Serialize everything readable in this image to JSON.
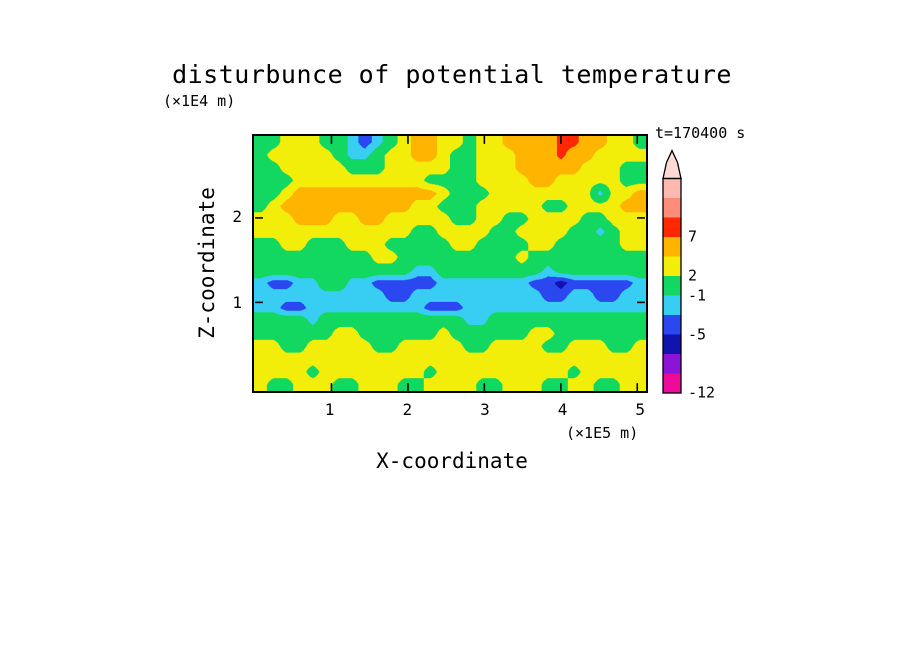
{
  "chart_data": {
    "type": "heatmap",
    "title": "disturbunce of potential temperature",
    "xlabel": "X-coordinate",
    "ylabel": "Z-coordinate",
    "x_unit": "(×1E5 m)",
    "y_unit": "(×1E4 m)",
    "time_label": "t=170400 s",
    "x_range": [
      0,
      5.1
    ],
    "y_range": [
      -0.05,
      2.97
    ],
    "x_ticks": [
      1,
      2,
      3,
      4,
      5
    ],
    "y_ticks": [
      1,
      2
    ],
    "legend_position": "right",
    "grid": false,
    "levels": [
      -12,
      -9,
      -7,
      -5,
      -3,
      -1,
      2,
      4,
      7,
      9,
      11,
      13
    ],
    "colors": [
      "#f0059b",
      "#ee0a9a",
      "#8a14d8",
      "#1212ae",
      "#2a47f0",
      "#38cdf2",
      "#12d862",
      "#f2ee0a",
      "#ffb400",
      "#ff2800",
      "#ff8c78",
      "#ffb9b0",
      "#ffd9d4"
    ],
    "colorbar_labels": [
      7,
      2,
      -1,
      -5,
      -12
    ],
    "values_note": "disturbance values on a 20-row (top z=2.97 to bottom z=-0.05) by 30-col (x=0..5.1) grid, units consistent with colorbar levels",
    "values": [
      [
        1,
        1,
        3,
        3,
        3,
        1,
        1,
        -2,
        -4,
        -2,
        1,
        3,
        5,
        5,
        3,
        3,
        1,
        3,
        3,
        5,
        5,
        5,
        5,
        8,
        8,
        5,
        5,
        3,
        3,
        1
      ],
      [
        1,
        3,
        3,
        3,
        3,
        3,
        1,
        -2,
        -2,
        1,
        3,
        3,
        5,
        5,
        3,
        1,
        1,
        3,
        3,
        3,
        5,
        5,
        5,
        8,
        5,
        5,
        3,
        3,
        3,
        3
      ],
      [
        1,
        1,
        3,
        3,
        3,
        3,
        3,
        1,
        1,
        1,
        3,
        3,
        3,
        3,
        3,
        1,
        1,
        3,
        3,
        3,
        5,
        5,
        5,
        5,
        5,
        3,
        3,
        3,
        1,
        1
      ],
      [
        1,
        1,
        1,
        3,
        3,
        3,
        3,
        3,
        3,
        3,
        3,
        3,
        3,
        1,
        1,
        1,
        1,
        3,
        3,
        3,
        3,
        5,
        5,
        3,
        3,
        3,
        3,
        3,
        1,
        1
      ],
      [
        1,
        1,
        3,
        5,
        5,
        5,
        5,
        5,
        5,
        5,
        5,
        5,
        5,
        5,
        3,
        1,
        1,
        1,
        3,
        3,
        3,
        3,
        3,
        3,
        3,
        3,
        -2,
        3,
        3,
        5
      ],
      [
        1,
        3,
        5,
        5,
        5,
        5,
        5,
        5,
        5,
        5,
        5,
        5,
        3,
        3,
        1,
        1,
        1,
        3,
        3,
        3,
        3,
        3,
        1,
        1,
        3,
        3,
        3,
        3,
        5,
        5
      ],
      [
        3,
        3,
        3,
        5,
        5,
        5,
        3,
        3,
        5,
        5,
        3,
        3,
        3,
        3,
        3,
        1,
        1,
        3,
        3,
        1,
        1,
        3,
        3,
        3,
        3,
        1,
        1,
        3,
        3,
        3
      ],
      [
        3,
        3,
        3,
        3,
        3,
        3,
        3,
        3,
        3,
        3,
        3,
        3,
        1,
        1,
        3,
        3,
        3,
        3,
        1,
        1,
        3,
        3,
        3,
        3,
        1,
        1,
        -2,
        1,
        3,
        3
      ],
      [
        1,
        1,
        3,
        3,
        1,
        1,
        1,
        3,
        3,
        3,
        1,
        1,
        1,
        1,
        1,
        3,
        3,
        1,
        1,
        1,
        1,
        3,
        3,
        1,
        1,
        1,
        1,
        1,
        3,
        3
      ],
      [
        1,
        1,
        1,
        1,
        1,
        1,
        1,
        1,
        1,
        3,
        3,
        1,
        1,
        1,
        1,
        1,
        1,
        1,
        1,
        1,
        3,
        1,
        1,
        1,
        1,
        1,
        1,
        1,
        1,
        1
      ],
      [
        1,
        1,
        1,
        1,
        1,
        1,
        1,
        1,
        1,
        1,
        1,
        1,
        -2,
        -2,
        1,
        1,
        1,
        1,
        1,
        1,
        1,
        1,
        -2,
        1,
        1,
        1,
        1,
        1,
        1,
        1
      ],
      [
        -2,
        -4,
        -4,
        -2,
        -2,
        1,
        1,
        -2,
        -2,
        -4,
        -4,
        -4,
        -4,
        -4,
        -2,
        -2,
        -2,
        -2,
        -2,
        -2,
        -2,
        -4,
        -4,
        -6,
        -4,
        -4,
        -4,
        -4,
        -4,
        -2
      ],
      [
        -2,
        -2,
        -2,
        -2,
        -2,
        -2,
        -2,
        -2,
        -2,
        -2,
        -4,
        -4,
        -2,
        -2,
        -2,
        -2,
        -2,
        -2,
        -2,
        -2,
        -2,
        -2,
        -4,
        -4,
        -2,
        -2,
        -4,
        -4,
        -2,
        -2
      ],
      [
        -2,
        -2,
        -4,
        -4,
        -2,
        -2,
        -2,
        -2,
        -2,
        -2,
        -2,
        -2,
        -2,
        -4,
        -4,
        -4,
        -2,
        -2,
        -2,
        -2,
        -2,
        -2,
        -2,
        -2,
        -2,
        -2,
        -2,
        -2,
        -2,
        -2
      ],
      [
        1,
        1,
        1,
        1,
        -2,
        1,
        1,
        1,
        1,
        1,
        1,
        1,
        1,
        1,
        1,
        1,
        -2,
        -2,
        1,
        1,
        1,
        1,
        1,
        1,
        1,
        1,
        1,
        1,
        1,
        1
      ],
      [
        1,
        1,
        1,
        1,
        1,
        1,
        3,
        3,
        1,
        1,
        1,
        1,
        1,
        1,
        3,
        1,
        1,
        1,
        1,
        1,
        1,
        3,
        3,
        1,
        1,
        1,
        1,
        1,
        1,
        1
      ],
      [
        3,
        3,
        1,
        1,
        3,
        3,
        3,
        3,
        3,
        1,
        1,
        3,
        3,
        3,
        3,
        3,
        1,
        1,
        3,
        3,
        3,
        3,
        1,
        1,
        3,
        3,
        3,
        1,
        1,
        3
      ],
      [
        3,
        3,
        3,
        3,
        3,
        3,
        3,
        3,
        3,
        3,
        3,
        3,
        3,
        3,
        3,
        3,
        3,
        3,
        3,
        3,
        3,
        3,
        3,
        3,
        3,
        3,
        3,
        3,
        3,
        3
      ],
      [
        3,
        3,
        3,
        3,
        1,
        3,
        3,
        3,
        3,
        3,
        3,
        3,
        3,
        1,
        3,
        3,
        3,
        3,
        3,
        3,
        3,
        3,
        3,
        3,
        1,
        3,
        3,
        3,
        3,
        3
      ],
      [
        3,
        1,
        1,
        3,
        3,
        3,
        1,
        1,
        3,
        3,
        3,
        1,
        1,
        3,
        3,
        3,
        3,
        1,
        1,
        3,
        3,
        3,
        1,
        1,
        3,
        3,
        1,
        1,
        3,
        3
      ]
    ]
  }
}
